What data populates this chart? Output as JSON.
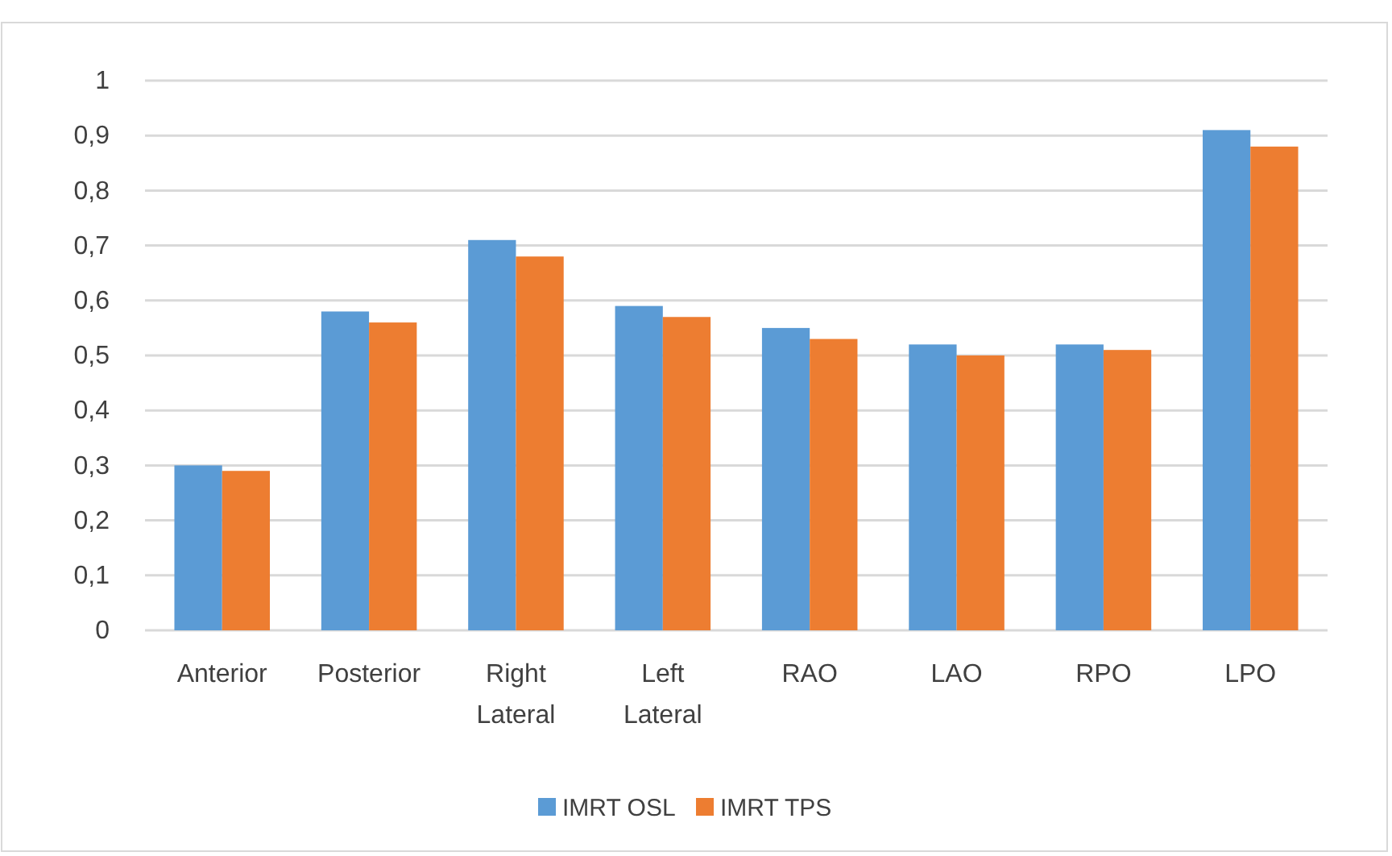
{
  "chart_data": {
    "type": "bar",
    "categories": [
      "Anterior",
      "Posterior",
      "Right Lateral",
      "Left Lateral",
      "RAO",
      "LAO",
      "RPO",
      "LPO"
    ],
    "series": [
      {
        "name": "IMRT OSL",
        "color": "#5b9bd5",
        "values": [
          0.3,
          0.58,
          0.71,
          0.59,
          0.55,
          0.52,
          0.52,
          0.91
        ]
      },
      {
        "name": "IMRT TPS",
        "color": "#ed7d31",
        "values": [
          0.29,
          0.56,
          0.68,
          0.57,
          0.53,
          0.5,
          0.51,
          0.88
        ]
      }
    ],
    "ylim": [
      0,
      1
    ],
    "yticks": [
      0,
      {
        "value": 0.1,
        "label": "0,1"
      },
      {
        "value": 0.2,
        "label": "0,2"
      },
      {
        "value": 0.3,
        "label": "0,3"
      },
      {
        "value": 0.4,
        "label": "0,4"
      },
      {
        "value": 0.5,
        "label": "0,5"
      },
      {
        "value": 0.6,
        "label": "0,6"
      },
      {
        "value": 0.7,
        "label": "0,7"
      },
      {
        "value": 0.8,
        "label": "0,8"
      },
      {
        "value": 0.9,
        "label": "0,9"
      },
      1
    ],
    "grid": "y",
    "legend": "bottom"
  }
}
